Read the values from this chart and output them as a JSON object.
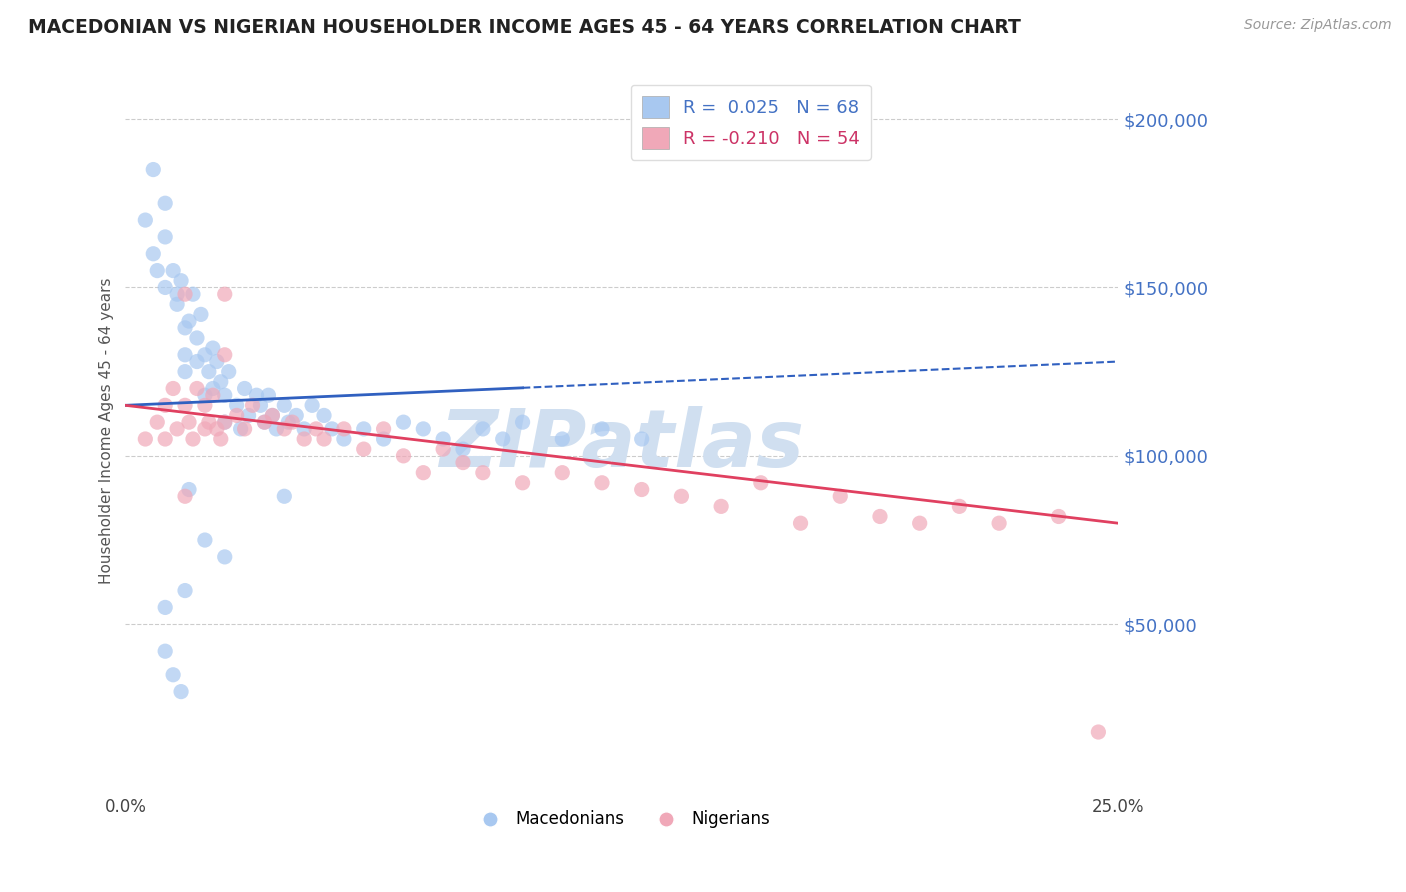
{
  "title": "MACEDONIAN VS NIGERIAN HOUSEHOLDER INCOME AGES 45 - 64 YEARS CORRELATION CHART",
  "source": "Source: ZipAtlas.com",
  "ylabel": "Householder Income Ages 45 - 64 years",
  "xlim": [
    0.0,
    0.25
  ],
  "ylim": [
    0,
    215000
  ],
  "yticks": [
    50000,
    100000,
    150000,
    200000
  ],
  "xticks": [
    0.0,
    0.05,
    0.1,
    0.15,
    0.2,
    0.25
  ],
  "mac_color": "#a8c8f0",
  "nig_color": "#f0a8b8",
  "mac_line_color": "#3060c0",
  "nig_line_color": "#e04060",
  "watermark": "ZIPatlas",
  "watermark_color": "#d0dff0",
  "mac_x": [
    0.005,
    0.007,
    0.007,
    0.008,
    0.01,
    0.01,
    0.01,
    0.012,
    0.013,
    0.013,
    0.014,
    0.015,
    0.015,
    0.015,
    0.016,
    0.017,
    0.018,
    0.018,
    0.019,
    0.02,
    0.02,
    0.021,
    0.022,
    0.022,
    0.023,
    0.024,
    0.025,
    0.025,
    0.026,
    0.028,
    0.029,
    0.03,
    0.031,
    0.033,
    0.034,
    0.035,
    0.036,
    0.037,
    0.038,
    0.04,
    0.041,
    0.043,
    0.045,
    0.047,
    0.05,
    0.052,
    0.055,
    0.06,
    0.065,
    0.07,
    0.075,
    0.08,
    0.085,
    0.09,
    0.095,
    0.1,
    0.11,
    0.12,
    0.13,
    0.04,
    0.02,
    0.025,
    0.015,
    0.01,
    0.01,
    0.012,
    0.014,
    0.016
  ],
  "mac_y": [
    170000,
    185000,
    160000,
    155000,
    175000,
    165000,
    150000,
    155000,
    148000,
    145000,
    152000,
    138000,
    130000,
    125000,
    140000,
    148000,
    135000,
    128000,
    142000,
    130000,
    118000,
    125000,
    132000,
    120000,
    128000,
    122000,
    118000,
    110000,
    125000,
    115000,
    108000,
    120000,
    112000,
    118000,
    115000,
    110000,
    118000,
    112000,
    108000,
    115000,
    110000,
    112000,
    108000,
    115000,
    112000,
    108000,
    105000,
    108000,
    105000,
    110000,
    108000,
    105000,
    102000,
    108000,
    105000,
    110000,
    105000,
    108000,
    105000,
    88000,
    75000,
    70000,
    60000,
    55000,
    42000,
    35000,
    30000,
    90000
  ],
  "nig_x": [
    0.005,
    0.008,
    0.01,
    0.01,
    0.012,
    0.013,
    0.015,
    0.015,
    0.016,
    0.017,
    0.018,
    0.02,
    0.02,
    0.021,
    0.022,
    0.023,
    0.024,
    0.025,
    0.025,
    0.028,
    0.03,
    0.032,
    0.035,
    0.037,
    0.04,
    0.042,
    0.045,
    0.048,
    0.05,
    0.055,
    0.06,
    0.065,
    0.07,
    0.075,
    0.08,
    0.085,
    0.09,
    0.1,
    0.11,
    0.12,
    0.13,
    0.14,
    0.15,
    0.16,
    0.17,
    0.18,
    0.19,
    0.2,
    0.21,
    0.22,
    0.235,
    0.245,
    0.015,
    0.025
  ],
  "nig_y": [
    105000,
    110000,
    115000,
    105000,
    120000,
    108000,
    148000,
    115000,
    110000,
    105000,
    120000,
    115000,
    108000,
    110000,
    118000,
    108000,
    105000,
    148000,
    110000,
    112000,
    108000,
    115000,
    110000,
    112000,
    108000,
    110000,
    105000,
    108000,
    105000,
    108000,
    102000,
    108000,
    100000,
    95000,
    102000,
    98000,
    95000,
    92000,
    95000,
    92000,
    90000,
    88000,
    85000,
    92000,
    80000,
    88000,
    82000,
    80000,
    85000,
    80000,
    82000,
    18000,
    88000,
    130000
  ]
}
